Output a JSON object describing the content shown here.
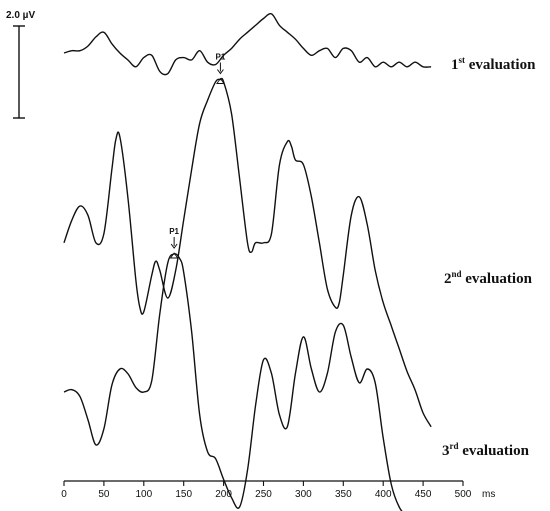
{
  "chart_data": {
    "type": "line",
    "x_unit": "ms",
    "xlim": [
      0,
      500
    ],
    "x_ticks": [
      0,
      50,
      100,
      150,
      200,
      250,
      300,
      350,
      400,
      450,
      500
    ],
    "scale_bar_label": "2.0 µV",
    "scale_bar_uv": 2.0,
    "series": [
      {
        "name": "1st evaluation",
        "label_main": "1",
        "label_sup": "st",
        "label_rest": " evaluation",
        "x": [
          0,
          10,
          20,
          30,
          40,
          50,
          60,
          70,
          80,
          90,
          100,
          110,
          120,
          130,
          140,
          150,
          160,
          170,
          180,
          190,
          200,
          210,
          220,
          230,
          240,
          250,
          260,
          270,
          280,
          290,
          300,
          310,
          320,
          330,
          340,
          350,
          360,
          370,
          380,
          390,
          400,
          410,
          420,
          430,
          440,
          450,
          460
        ],
        "y": [
          0.0,
          0.05,
          0.05,
          0.15,
          0.35,
          0.45,
          0.2,
          0.0,
          -0.15,
          -0.3,
          -0.1,
          -0.05,
          -0.4,
          -0.45,
          -0.15,
          -0.1,
          -0.15,
          0.05,
          -0.2,
          -0.25,
          -0.05,
          0.1,
          0.3,
          0.45,
          0.6,
          0.75,
          0.85,
          0.6,
          0.45,
          0.3,
          0.1,
          -0.05,
          0.05,
          0.1,
          -0.1,
          0.1,
          0.05,
          -0.2,
          -0.1,
          -0.3,
          -0.2,
          -0.3,
          -0.2,
          -0.3,
          -0.2,
          -0.3,
          -0.3
        ]
      },
      {
        "name": "2nd evaluation",
        "label_main": "2",
        "label_sup": "nd",
        "label_rest": " evaluation",
        "peak": {
          "label": "P1",
          "x": 196
        },
        "x": [
          0,
          10,
          20,
          30,
          40,
          50,
          60,
          65,
          70,
          80,
          90,
          95,
          100,
          110,
          115,
          120,
          130,
          140,
          150,
          160,
          170,
          180,
          190,
          196,
          200,
          210,
          220,
          230,
          235,
          240,
          250,
          260,
          270,
          280,
          285,
          290,
          300,
          310,
          320,
          330,
          340,
          345,
          350,
          360,
          370,
          380,
          390,
          400,
          410,
          420,
          430,
          440,
          450,
          460
        ],
        "y": [
          -0.8,
          -0.3,
          0.0,
          -0.2,
          -0.8,
          -0.6,
          0.8,
          1.45,
          1.5,
          0.2,
          -1.6,
          -2.2,
          -2.3,
          -1.5,
          -1.2,
          -1.4,
          -2.0,
          -1.4,
          -0.3,
          0.8,
          1.8,
          2.3,
          2.7,
          2.75,
          2.7,
          2.0,
          0.6,
          -0.8,
          -1.0,
          -0.8,
          -0.8,
          -0.6,
          0.9,
          1.4,
          1.3,
          1.0,
          0.9,
          0.2,
          -0.8,
          -1.8,
          -2.2,
          -2.1,
          -1.5,
          -0.2,
          0.2,
          -0.4,
          -1.4,
          -2.1,
          -2.6,
          -3.1,
          -3.6,
          -4.0,
          -4.5,
          -4.8
        ]
      },
      {
        "name": "3rd evaluation",
        "label_main": "3",
        "label_sup": "rd",
        "label_rest": " evaluation",
        "peak": {
          "label": "P1",
          "x": 138
        },
        "x": [
          0,
          10,
          20,
          30,
          40,
          50,
          60,
          70,
          80,
          90,
          100,
          110,
          120,
          130,
          138,
          145,
          150,
          160,
          170,
          180,
          190,
          200,
          210,
          220,
          230,
          240,
          250,
          260,
          270,
          280,
          290,
          300,
          310,
          320,
          330,
          340,
          350,
          360,
          370,
          380,
          390,
          400,
          410,
          420,
          430,
          440,
          450,
          460
        ],
        "y": [
          0.0,
          0.05,
          -0.1,
          -0.6,
          -1.15,
          -0.8,
          0.15,
          0.5,
          0.4,
          0.1,
          0.0,
          0.25,
          1.7,
          2.8,
          3.0,
          2.9,
          2.6,
          1.3,
          -0.5,
          -1.3,
          -1.45,
          -1.9,
          -2.3,
          -2.5,
          -1.7,
          -0.3,
          0.7,
          0.4,
          -0.5,
          -0.75,
          0.4,
          1.2,
          0.5,
          0.0,
          0.4,
          1.3,
          1.45,
          0.75,
          0.2,
          0.5,
          0.2,
          -1.0,
          -2.0,
          -2.5,
          -2.7,
          -2.8,
          -2.8,
          -2.8
        ]
      }
    ]
  }
}
